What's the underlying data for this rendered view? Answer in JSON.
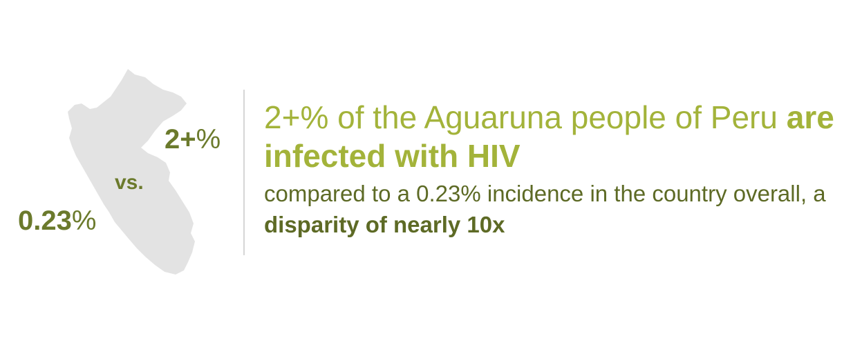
{
  "colors": {
    "accent_light": "#a3b33a",
    "accent_dark": "#6b7a2c",
    "map_fill": "#e3e3e3",
    "divider": "#d6d6d6"
  },
  "map": {
    "icon": "peru-map-icon"
  },
  "stats": {
    "group_value": "2+",
    "group_unit": "%",
    "versus": "vs.",
    "country_value": "0.23",
    "country_unit": "%"
  },
  "headline": {
    "part1": "2+% of the Aguaruna people of Peru ",
    "emphasis": "are infected with HIV"
  },
  "body": {
    "part1": "compared to a 0.23% incidence in the country overall, a ",
    "emphasis": "disparity of nearly 10x"
  }
}
